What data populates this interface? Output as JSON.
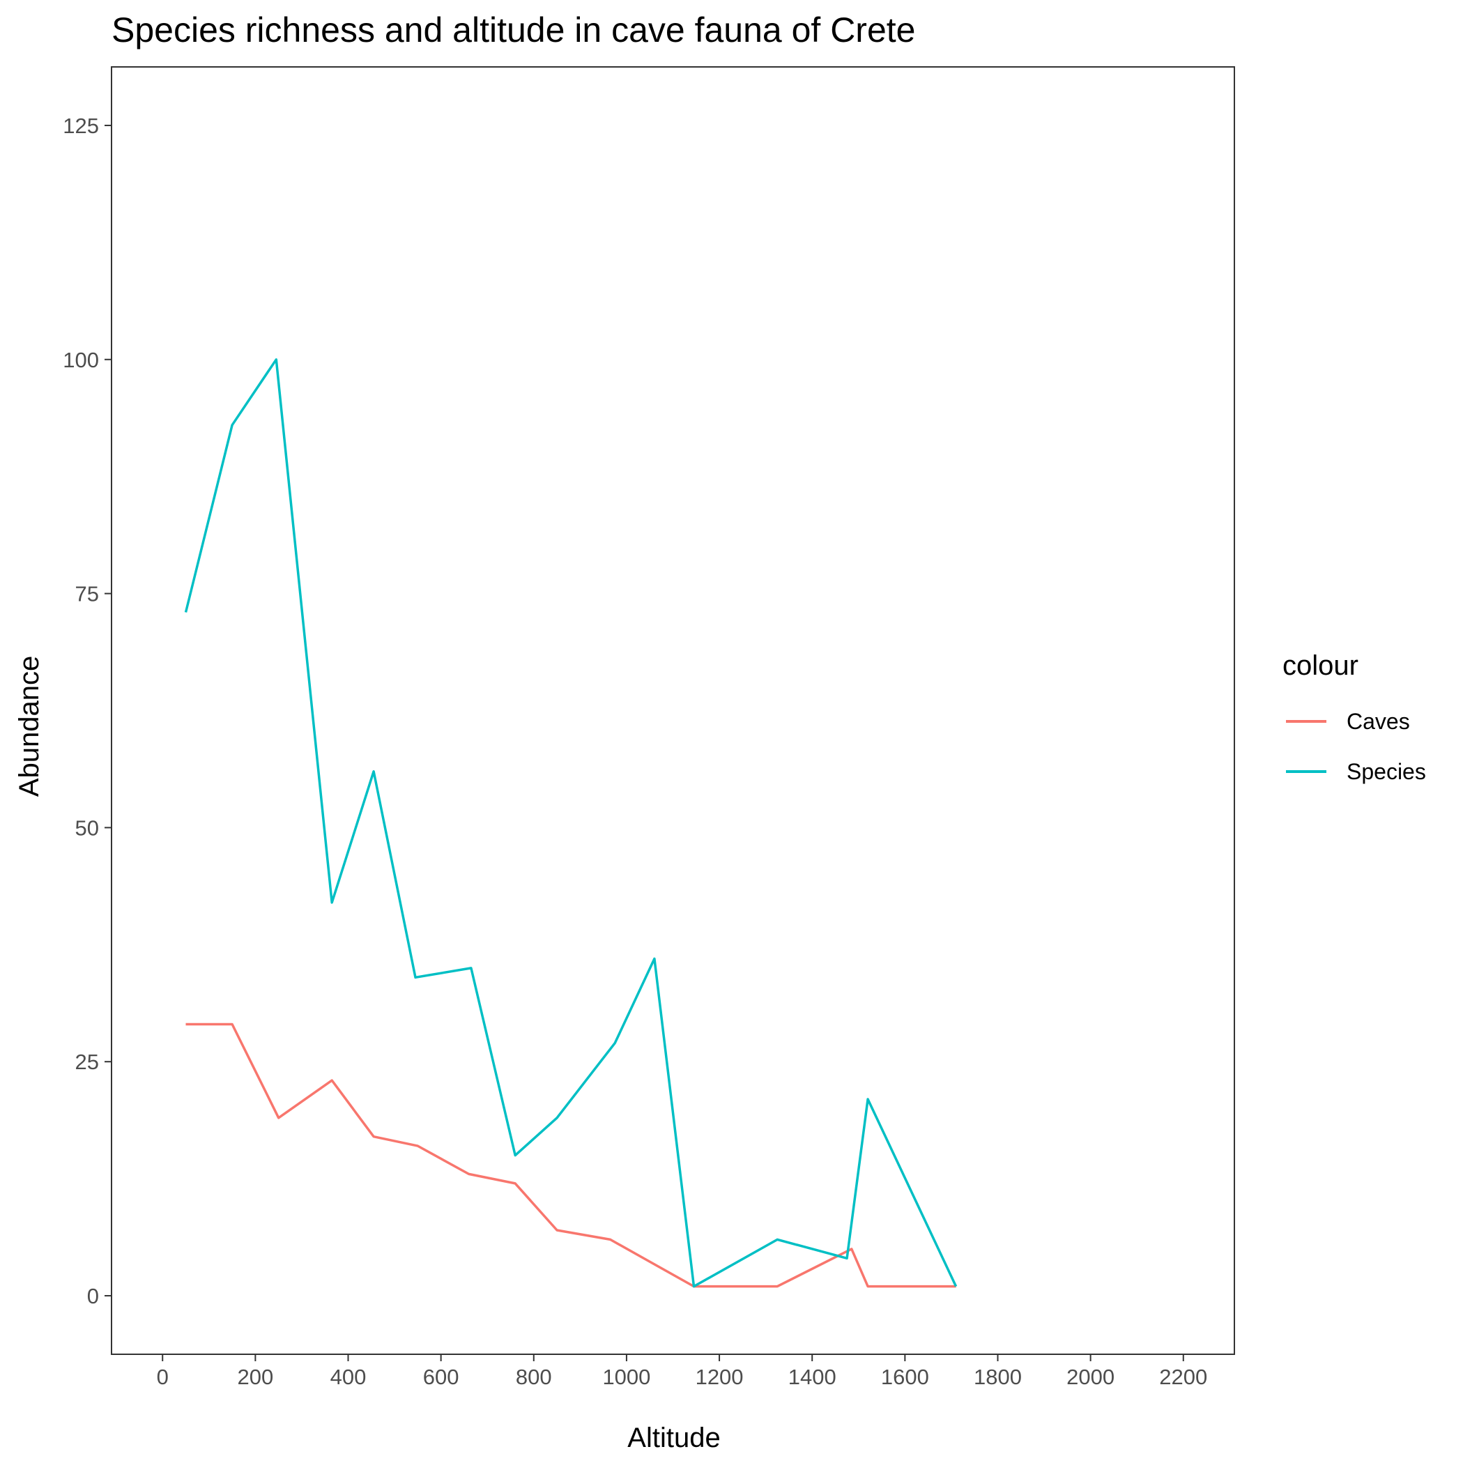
{
  "chart_data": {
    "type": "line",
    "title": "Species richness and altitude in cave fauna of Crete",
    "xlabel": "Altitude",
    "ylabel": "Abundance",
    "xlim": [
      -110,
      2310
    ],
    "ylim": [
      -6.25,
      131.25
    ],
    "x_ticks": [
      0,
      200,
      400,
      600,
      800,
      1000,
      1200,
      1400,
      1600,
      1800,
      2000,
      2200
    ],
    "y_ticks": [
      0,
      25,
      50,
      75,
      100,
      125
    ],
    "grid": false,
    "legend": {
      "title": "colour",
      "placement": "right"
    },
    "series": [
      {
        "name": "Caves",
        "color": "#F8766D",
        "x": [
          50,
          150,
          250,
          365,
          455,
          550,
          660,
          760,
          850,
          965,
          1055,
          1145,
          1325,
          1485,
          1520,
          1710
        ],
        "y": [
          29,
          29,
          19,
          23,
          17,
          16,
          13,
          12,
          7,
          6,
          3.5,
          1,
          1,
          5,
          1,
          1
        ]
      },
      {
        "name": "Species",
        "color": "#00BFC4",
        "x": [
          50,
          150,
          245,
          365,
          455,
          545,
          665,
          760,
          850,
          975,
          1060,
          1145,
          1325,
          1475,
          1520,
          1710
        ],
        "y": [
          73,
          93,
          100,
          42,
          56,
          34,
          35,
          15,
          19,
          27,
          36,
          1,
          6,
          4,
          21,
          1
        ]
      }
    ]
  }
}
